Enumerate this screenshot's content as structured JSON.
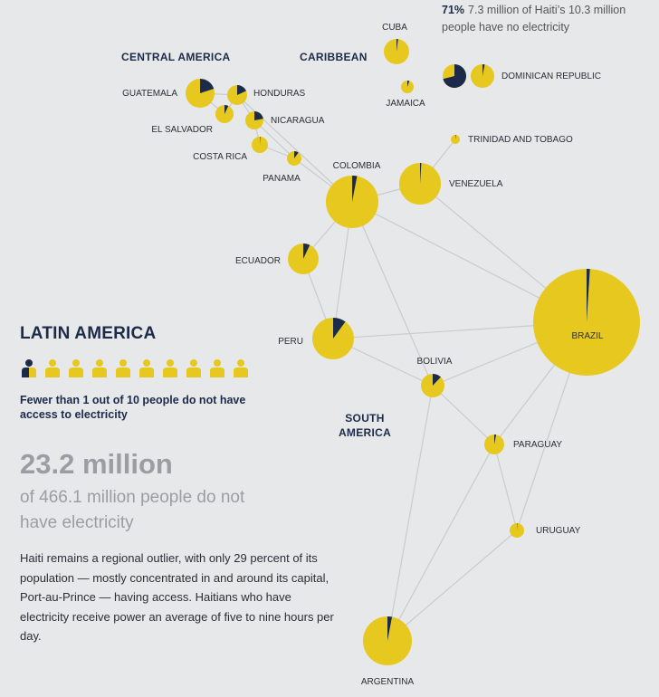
{
  "colors": {
    "no_access": "#1d2b4a",
    "access": "#e6c81e",
    "edge": "#c9cbcd",
    "background": "#e7e8e9"
  },
  "regions": {
    "central_america": "CENTRAL AMERICA",
    "caribbean": "CARIBBEAN",
    "south_america_line1": "SOUTH",
    "south_america_line2": "AMERICA"
  },
  "haiti_note": {
    "pct": "71%",
    "line1": "7.3 million of Haiti’s 10.3 million",
    "line2": "people have no electricity"
  },
  "countries": [
    {
      "id": "cuba",
      "label": "CUBA",
      "no_access_share": 0.02
    },
    {
      "id": "haiti",
      "label": "",
      "no_access_share": 0.71
    },
    {
      "id": "dominican-republic",
      "label": "DOMINICAN REPUBLIC",
      "no_access_share": 0.03
    },
    {
      "id": "jamaica",
      "label": "JAMAICA",
      "no_access_share": 0.05
    },
    {
      "id": "trinidad-and-tobago",
      "label": "TRINIDAD AND TOBAGO",
      "no_access_share": 0.02
    },
    {
      "id": "guatemala",
      "label": "GUATEMALA",
      "no_access_share": 0.2
    },
    {
      "id": "honduras",
      "label": "HONDURAS",
      "no_access_share": 0.18
    },
    {
      "id": "el-salvador",
      "label": "EL SALVADOR",
      "no_access_share": 0.07
    },
    {
      "id": "nicaragua",
      "label": "NICARAGUA",
      "no_access_share": 0.22
    },
    {
      "id": "costa-rica",
      "label": "COSTA RICA",
      "no_access_share": 0.01
    },
    {
      "id": "panama",
      "label": "PANAMA",
      "no_access_share": 0.1
    },
    {
      "id": "colombia",
      "label": "COLOMBIA",
      "no_access_share": 0.03
    },
    {
      "id": "venezuela",
      "label": "VENEZUELA",
      "no_access_share": 0.01
    },
    {
      "id": "ecuador",
      "label": "ECUADOR",
      "no_access_share": 0.07
    },
    {
      "id": "peru",
      "label": "PERU",
      "no_access_share": 0.1
    },
    {
      "id": "bolivia",
      "label": "BOLIVIA",
      "no_access_share": 0.12
    },
    {
      "id": "brazil",
      "label": "BRAZIL",
      "no_access_share": 0.01
    },
    {
      "id": "paraguay",
      "label": "PARAGUAY",
      "no_access_share": 0.03
    },
    {
      "id": "uruguay",
      "label": "URUGUAY",
      "no_access_share": 0.01
    },
    {
      "id": "argentina",
      "label": "ARGENTINA",
      "no_access_share": 0.03
    }
  ],
  "edges": [
    [
      "guatemala",
      "honduras"
    ],
    [
      "guatemala",
      "el-salvador"
    ],
    [
      "honduras",
      "el-salvador"
    ],
    [
      "honduras",
      "nicaragua"
    ],
    [
      "nicaragua",
      "costa-rica"
    ],
    [
      "nicaragua",
      "panama"
    ],
    [
      "costa-rica",
      "panama"
    ],
    [
      "panama",
      "colombia"
    ],
    [
      "honduras",
      "colombia"
    ],
    [
      "colombia",
      "venezuela"
    ],
    [
      "colombia",
      "ecuador"
    ],
    [
      "colombia",
      "peru"
    ],
    [
      "colombia",
      "brazil"
    ],
    [
      "colombia",
      "bolivia"
    ],
    [
      "venezuela",
      "trinidad-and-tobago"
    ],
    [
      "venezuela",
      "brazil"
    ],
    [
      "ecuador",
      "peru"
    ],
    [
      "peru",
      "bolivia"
    ],
    [
      "peru",
      "brazil"
    ],
    [
      "bolivia",
      "brazil"
    ],
    [
      "bolivia",
      "paraguay"
    ],
    [
      "bolivia",
      "argentina"
    ],
    [
      "brazil",
      "paraguay"
    ],
    [
      "brazil",
      "uruguay"
    ],
    [
      "paraguay",
      "argentina"
    ],
    [
      "paraguay",
      "uruguay"
    ],
    [
      "uruguay",
      "argentina"
    ]
  ],
  "panel": {
    "title": "LATIN AMERICA",
    "people_icons": {
      "total": 10,
      "partial_no_access": 1
    },
    "fewer_text": "Fewer than 1 out of 10 people do not have access to electricity",
    "big_number": "23.2 million",
    "sub_text": "of 466.1 million people do not have electricity",
    "body_text": "Haiti remains a regional outlier, with only 29 percent of its population — mostly concentrated in and around its capital, Port-au-Prince — having access. Haitians who have electricity receive power an average of five to nine hours per day."
  }
}
